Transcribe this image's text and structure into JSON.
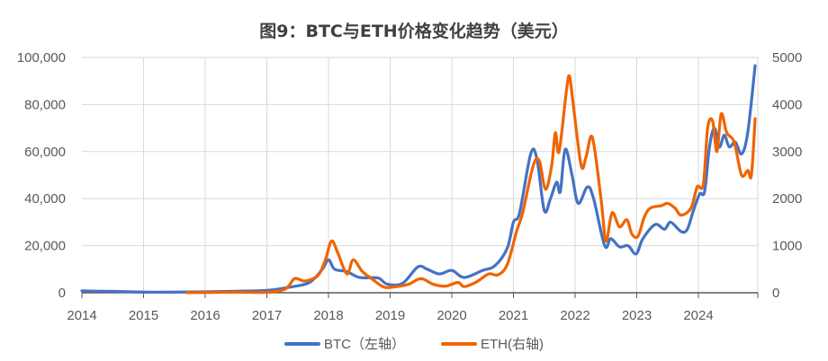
{
  "chart_data": {
    "type": "line",
    "title": "图9：BTC与ETH价格变化趋势（美元）",
    "xlim": [
      2014,
      2024.95
    ],
    "x_ticks": [
      "2014",
      "2015",
      "2016",
      "2017",
      "2018",
      "2019",
      "2020",
      "2021",
      "2022",
      "2023",
      "2024"
    ],
    "y_left": {
      "lim": [
        0,
        100000
      ],
      "ticks": [
        "0",
        "20,000",
        "40,000",
        "60,000",
        "80,000",
        "100,000"
      ]
    },
    "y_right": {
      "lim": [
        0,
        5000
      ],
      "ticks": [
        "0",
        "1000",
        "2000",
        "3000",
        "4000",
        "5000"
      ]
    },
    "grid": true,
    "legend_position": "bottom",
    "series": [
      {
        "name": "BTC（左轴）",
        "axis": "left",
        "color": "#4472C4",
        "x": [
          2014.0,
          2014.2,
          2014.5,
          2015.0,
          2015.5,
          2016.0,
          2016.5,
          2017.0,
          2017.4,
          2017.7,
          2017.9,
          2018.0,
          2018.1,
          2018.3,
          2018.5,
          2018.8,
          2018.95,
          2019.2,
          2019.45,
          2019.6,
          2019.8,
          2020.0,
          2020.2,
          2020.5,
          2020.7,
          2020.9,
          2021.0,
          2021.1,
          2021.28,
          2021.38,
          2021.5,
          2021.6,
          2021.7,
          2021.76,
          2021.84,
          2021.95,
          2022.05,
          2022.2,
          2022.3,
          2022.48,
          2022.58,
          2022.72,
          2022.86,
          2022.99,
          2023.1,
          2023.3,
          2023.45,
          2023.55,
          2023.72,
          2023.82,
          2023.92,
          2024.02,
          2024.1,
          2024.18,
          2024.26,
          2024.34,
          2024.42,
          2024.5,
          2024.6,
          2024.7,
          2024.8,
          2024.92
        ],
        "y": [
          800,
          700,
          600,
          300,
          280,
          400,
          650,
          1000,
          2500,
          4500,
          10000,
          14000,
          10000,
          9000,
          6500,
          6300,
          3700,
          4000,
          11000,
          10000,
          8000,
          9500,
          6500,
          9500,
          11500,
          19000,
          30000,
          34000,
          59000,
          57000,
          35000,
          40000,
          47000,
          43000,
          61000,
          50000,
          38000,
          45000,
          40000,
          20000,
          23000,
          19500,
          20000,
          16500,
          23000,
          29000,
          27000,
          30000,
          26000,
          27000,
          35000,
          42000,
          43000,
          62000,
          70000,
          62000,
          67000,
          62000,
          64000,
          59000,
          68000,
          96500
        ]
      },
      {
        "name": "ETH(右轴)",
        "axis": "right",
        "color": "#F06400",
        "x": [
          2015.7,
          2016.5,
          2017.0,
          2017.3,
          2017.45,
          2017.6,
          2017.75,
          2017.85,
          2017.95,
          2018.05,
          2018.15,
          2018.3,
          2018.4,
          2018.55,
          2018.7,
          2018.9,
          2019.1,
          2019.3,
          2019.5,
          2019.7,
          2019.9,
          2020.1,
          2020.2,
          2020.4,
          2020.6,
          2020.75,
          2020.9,
          2021.05,
          2021.15,
          2021.32,
          2021.42,
          2021.52,
          2021.62,
          2021.68,
          2021.74,
          2021.86,
          2021.91,
          2021.97,
          2022.1,
          2022.18,
          2022.28,
          2022.42,
          2022.5,
          2022.6,
          2022.72,
          2022.84,
          2022.92,
          2023.02,
          2023.12,
          2023.22,
          2023.4,
          2023.5,
          2023.62,
          2023.72,
          2023.88,
          2023.98,
          2024.08,
          2024.15,
          2024.23,
          2024.3,
          2024.37,
          2024.46,
          2024.58,
          2024.7,
          2024.8,
          2024.86,
          2024.92
        ],
        "y": [
          1,
          12,
          10,
          80,
          300,
          250,
          300,
          400,
          700,
          1100,
          850,
          400,
          700,
          450,
          300,
          120,
          130,
          180,
          300,
          180,
          140,
          220,
          130,
          230,
          400,
          380,
          600,
          1300,
          1700,
          2700,
          2800,
          2200,
          2700,
          3400,
          3000,
          4300,
          4600,
          4000,
          2700,
          2900,
          3300,
          2000,
          1100,
          1700,
          1400,
          1550,
          1250,
          1200,
          1600,
          1800,
          1850,
          1900,
          1800,
          1650,
          1800,
          2250,
          2300,
          3500,
          3650,
          3000,
          3800,
          3400,
          3200,
          2500,
          2600,
          2500,
          3700
        ]
      }
    ]
  }
}
